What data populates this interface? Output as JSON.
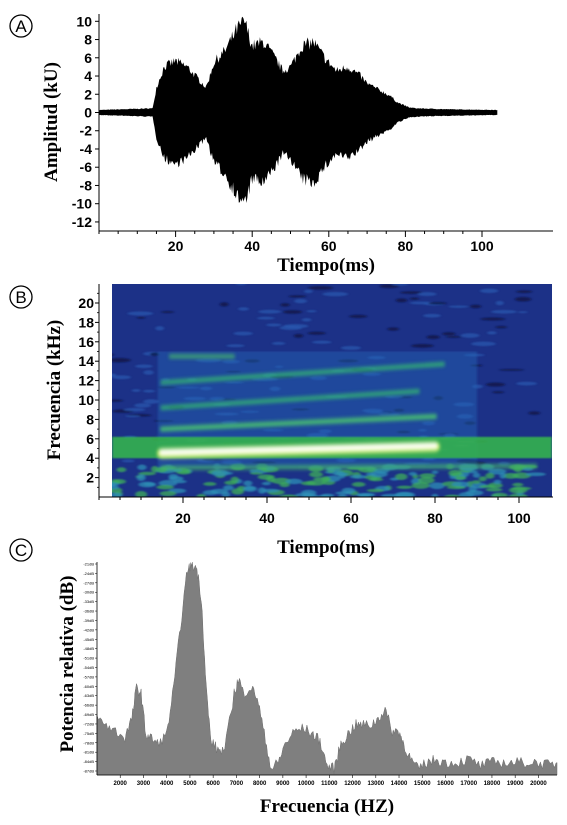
{
  "chart_data": [
    {
      "panel": "A",
      "type": "line",
      "xlabel": "Tiempo(ms)",
      "ylabel": "Amplitud (kU)",
      "xticks": [
        20,
        40,
        60,
        80,
        100
      ],
      "yticks": [
        10,
        8,
        6,
        4,
        2,
        0,
        -2,
        -4,
        -6,
        -8,
        -10,
        -12
      ],
      "xlim": [
        0,
        104
      ],
      "ylim": [
        -13,
        11.5
      ],
      "series": [
        {
          "envelope_x": [
            0,
            14,
            15,
            17,
            20,
            23,
            26,
            28,
            30,
            33,
            36,
            38,
            40,
            43,
            46,
            48,
            50,
            53,
            56,
            59,
            62,
            65,
            68,
            70,
            72,
            74,
            76,
            78,
            80,
            81,
            83,
            90,
            104
          ],
          "envelope_amp": [
            0.3,
            0.5,
            3,
            5.5,
            6.2,
            5.5,
            4,
            3,
            6,
            7.5,
            10,
            11,
            8,
            8.5,
            6.5,
            5,
            5.5,
            8,
            8.5,
            6.5,
            5,
            5.5,
            4.5,
            3.5,
            3,
            2.5,
            2,
            1.2,
            0.8,
            0.6,
            0.5,
            0.4,
            0.3
          ]
        }
      ]
    },
    {
      "panel": "B",
      "type": "heatmap",
      "xlabel": "Tiempo(ms)",
      "ylabel": "Frecuencia (kHz)",
      "xticks": [
        20,
        40,
        60,
        80,
        100
      ],
      "yticks": [
        2,
        4,
        6,
        8,
        10,
        12,
        14,
        16,
        18,
        20
      ],
      "xlim": [
        0,
        104
      ],
      "ylim": [
        0,
        22
      ],
      "colors": {
        "background": "#1a2f86",
        "mid": "#2a7fbd",
        "band": "#3bbf5a",
        "hot": "#ffffff"
      },
      "bands": [
        {
          "freq_start": 4.6,
          "freq_end": 5.3,
          "t_start": 15,
          "t_end": 80,
          "intensity": "hot"
        },
        {
          "freq_start": 7.0,
          "freq_end": 8.3,
          "t_start": 15,
          "t_end": 80,
          "intensity": "high"
        },
        {
          "freq_start": 9.2,
          "freq_end": 10.9,
          "t_start": 15,
          "t_end": 76,
          "intensity": "mid"
        },
        {
          "freq_start": 11.8,
          "freq_end": 13.7,
          "t_start": 15,
          "t_end": 82,
          "intensity": "mid"
        },
        {
          "freq_start": 14.5,
          "freq_end": 14.5,
          "t_start": 17,
          "t_end": 32,
          "intensity": "low"
        },
        {
          "freq_start": 3.0,
          "freq_end": 3.2,
          "t_start": 15,
          "t_end": 104,
          "intensity": "low"
        }
      ]
    },
    {
      "panel": "C",
      "type": "area",
      "xlabel": "Frecuencia (HZ)",
      "ylabel": "Potencia relativa (dB)",
      "xticks": [
        2000,
        3000,
        4000,
        5000,
        6000,
        7000,
        8000,
        9000,
        10000,
        11000,
        12000,
        13000,
        14000,
        15000,
        16000,
        17000,
        18000,
        19000,
        20000
      ],
      "xlim": [
        1000,
        20800
      ],
      "yticks": [
        "-21dB",
        "-24dB",
        "-27dB",
        "-30dB",
        "-33dB",
        "-36dB",
        "-39dB",
        "-42dB",
        "-45dB",
        "-48dB",
        "-51dB",
        "-54dB",
        "-57dB",
        "-60dB",
        "-63dB",
        "-66dB",
        "-69dB",
        "-72dB",
        "-75dB",
        "-78dB",
        "-81dB",
        "-84dB",
        "-87dB"
      ],
      "ylim": [
        -88,
        -20
      ],
      "color": "#7f7f7f",
      "x": [
        1000,
        1400,
        1800,
        2200,
        2500,
        2700,
        2900,
        3100,
        3300,
        3600,
        4000,
        4300,
        4600,
        4900,
        5100,
        5300,
        5500,
        5700,
        5900,
        6200,
        6500,
        6900,
        7100,
        7300,
        7600,
        7900,
        8200,
        8500,
        8800,
        9100,
        9500,
        9900,
        10300,
        10600,
        10900,
        11200,
        11500,
        11800,
        12100,
        12400,
        12800,
        13100,
        13400,
        13700,
        14000,
        14200,
        14500,
        14800,
        15200,
        15600,
        16000,
        16500,
        17000,
        17500,
        18000,
        18500,
        19000,
        19500,
        20000,
        20500,
        20800
      ],
      "y": [
        -70,
        -72,
        -74,
        -76,
        -70,
        -60,
        -62,
        -75,
        -76,
        -78,
        -75,
        -60,
        -40,
        -22,
        -21,
        -22,
        -32,
        -60,
        -77,
        -80,
        -80,
        -62,
        -57,
        -62,
        -60,
        -63,
        -75,
        -86,
        -84,
        -78,
        -74,
        -73,
        -75,
        -77,
        -85,
        -86,
        -78,
        -75,
        -72,
        -72,
        -72,
        -70,
        -67,
        -74,
        -74,
        -78,
        -83,
        -86,
        -84,
        -83,
        -84,
        -84,
        -83,
        -85,
        -84,
        -84,
        -84,
        -84,
        -84,
        -85,
        -84
      ]
    }
  ]
}
